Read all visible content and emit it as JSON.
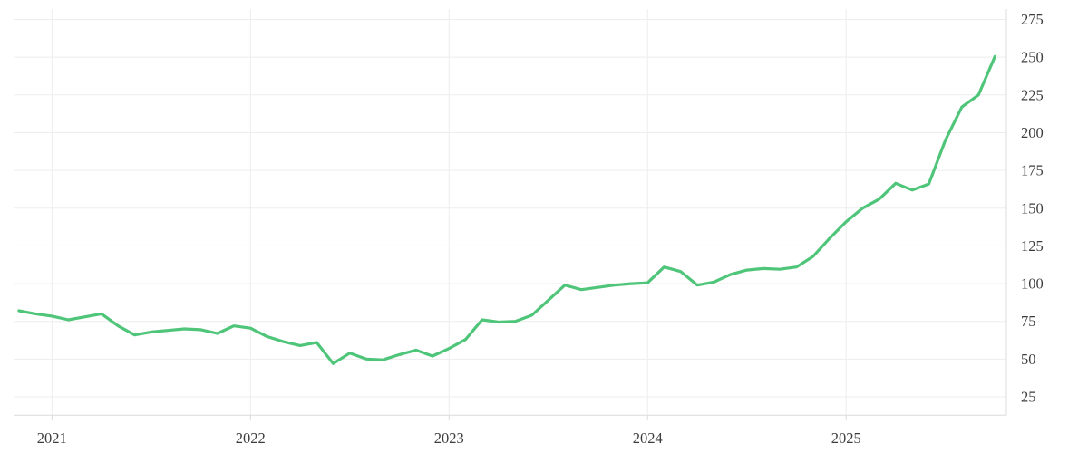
{
  "chart_data": {
    "type": "line",
    "title": "",
    "xlabel": "",
    "ylabel": "",
    "legend": null,
    "grid": true,
    "y_axis": {
      "side": "right",
      "ticks": [
        25,
        50,
        75,
        100,
        125,
        150,
        175,
        200,
        225,
        250,
        275
      ],
      "tick_step": 25,
      "ylim": [
        13,
        282
      ]
    },
    "x_axis": {
      "ticks": [
        "2021",
        "2022",
        "2023",
        "2024",
        "2025"
      ],
      "xlim": [
        "2020-11",
        "2025-10"
      ]
    },
    "series": [
      {
        "name": "value",
        "x": [
          "2020-11",
          "2020-12",
          "2021-01",
          "2021-02",
          "2021-03",
          "2021-04",
          "2021-05",
          "2021-06",
          "2021-07",
          "2021-08",
          "2021-09",
          "2021-10",
          "2021-11",
          "2021-12",
          "2022-01",
          "2022-02",
          "2022-03",
          "2022-04",
          "2022-05",
          "2022-06",
          "2022-07",
          "2022-08",
          "2022-09",
          "2022-10",
          "2022-11",
          "2022-12",
          "2023-01",
          "2023-02",
          "2023-03",
          "2023-04",
          "2023-05",
          "2023-06",
          "2023-07",
          "2023-08",
          "2023-09",
          "2023-10",
          "2023-11",
          "2023-12",
          "2024-01",
          "2024-02",
          "2024-03",
          "2024-04",
          "2024-05",
          "2024-06",
          "2024-07",
          "2024-08",
          "2024-09",
          "2024-10",
          "2024-11",
          "2024-12",
          "2025-01",
          "2025-02",
          "2025-03",
          "2025-04",
          "2025-05",
          "2025-06",
          "2025-07",
          "2025-08",
          "2025-09",
          "2025-10"
        ],
        "values": [
          82,
          80,
          78.5,
          76,
          78,
          80,
          72,
          66,
          68,
          69,
          70,
          69.5,
          67,
          72,
          70.5,
          65,
          61.5,
          59,
          61,
          47,
          54,
          50,
          49.5,
          53,
          56,
          52,
          57,
          63,
          76,
          74.5,
          75,
          79,
          89,
          99,
          96,
          97.5,
          99,
          100,
          100.5,
          111,
          108,
          99,
          101,
          106,
          109,
          110,
          109.5,
          111,
          118,
          130,
          141,
          150,
          156,
          166.5,
          162,
          166,
          195,
          217,
          225,
          250.5
        ]
      }
    ],
    "colors": {
      "line": "#4fc57a",
      "gridline": "#ededed",
      "axis_line": "#dcdcdc",
      "tick_text": "#3d3d3d",
      "background": "#ffffff"
    }
  }
}
